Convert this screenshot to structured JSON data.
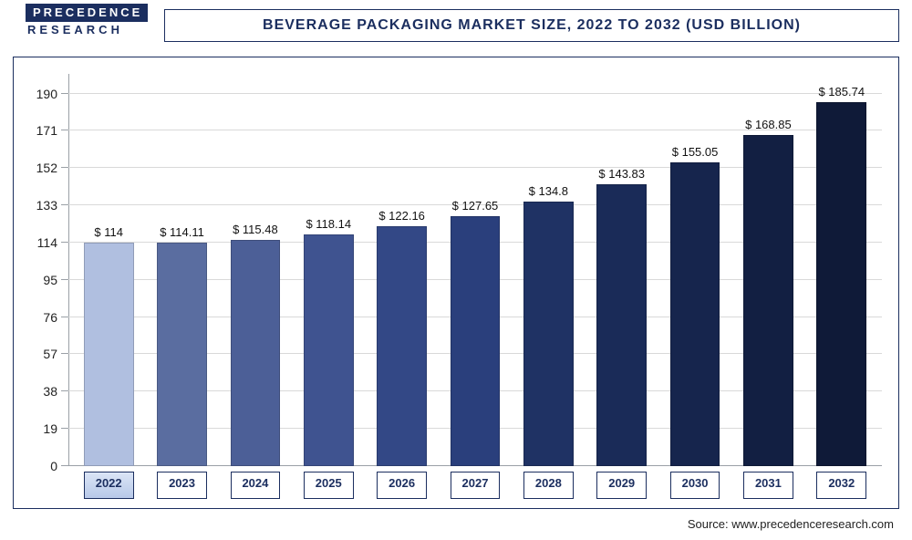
{
  "logo": {
    "line1": "PRECEDENCE",
    "line2": "RESEARCH"
  },
  "title": "BEVERAGE PACKAGING MARKET SIZE, 2022 TO 2032 (USD BILLION)",
  "source": "Source: www.precedenceresearch.com",
  "chart": {
    "type": "bar",
    "ymax": 200,
    "yticks": [
      0,
      19,
      38,
      57,
      76,
      95,
      114,
      133,
      152,
      171,
      190
    ],
    "grid_color": "#d9d9d9",
    "axis_color": "#9aa0a6",
    "background_color": "#ffffff",
    "bars": [
      {
        "year": "2022",
        "value": 114.0,
        "label": "$ 114",
        "color": "#b0bfe0",
        "highlight": true
      },
      {
        "year": "2023",
        "value": 114.11,
        "label": "$ 114.11",
        "color": "#5a6da0",
        "highlight": false
      },
      {
        "year": "2024",
        "value": 115.48,
        "label": "$ 115.48",
        "color": "#4c5f97",
        "highlight": false
      },
      {
        "year": "2025",
        "value": 118.14,
        "label": "$ 118.14",
        "color": "#3f5390",
        "highlight": false
      },
      {
        "year": "2026",
        "value": 122.16,
        "label": "$ 122.16",
        "color": "#334886",
        "highlight": false
      },
      {
        "year": "2027",
        "value": 127.65,
        "label": "$ 127.65",
        "color": "#2a3f7c",
        "highlight": false
      },
      {
        "year": "2028",
        "value": 134.8,
        "label": "$ 134.8",
        "color": "#1f3264",
        "highlight": false
      },
      {
        "year": "2029",
        "value": 143.83,
        "label": "$ 143.83",
        "color": "#1a2b58",
        "highlight": false
      },
      {
        "year": "2030",
        "value": 155.05,
        "label": "$ 155.05",
        "color": "#16254d",
        "highlight": false
      },
      {
        "year": "2031",
        "value": 168.85,
        "label": "$ 168.85",
        "color": "#121f42",
        "highlight": false
      },
      {
        "year": "2032",
        "value": 185.74,
        "label": "$ 185.74",
        "color": "#0f1a38",
        "highlight": false
      }
    ]
  }
}
